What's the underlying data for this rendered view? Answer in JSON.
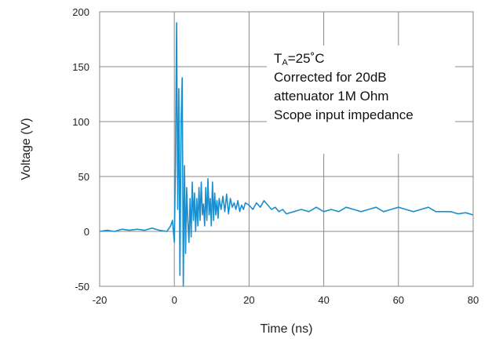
{
  "chart_data": {
    "type": "line",
    "title": "",
    "xlabel": "Time (ns)",
    "ylabel": "Voltage (V)",
    "xlim": [
      -20,
      80
    ],
    "ylim": [
      -50,
      200
    ],
    "xticks": [
      -20,
      0,
      20,
      40,
      60,
      80
    ],
    "yticks": [
      -50,
      0,
      50,
      100,
      150,
      200
    ],
    "grid": true,
    "line_color": "#1a8fcf",
    "annotation": {
      "line1_main": "T",
      "line1_sub": "A",
      "line1_rest": "=25˚C",
      "line2": "Corrected for 20dB",
      "line3": "attenuator 1M Ohm",
      "line4": "Scope input impedance"
    },
    "series": [
      {
        "x": [
          -20,
          -18,
          -16,
          -14,
          -12,
          -10,
          -8,
          -6,
          -4,
          -2,
          -1,
          -0.5,
          0,
          0.3,
          0.6,
          0.9,
          1.2,
          1.5,
          1.8,
          2.1,
          2.4,
          2.7,
          3.0,
          3.3,
          3.6,
          3.9,
          4.2,
          4.5,
          4.8,
          5.1,
          5.4,
          5.7,
          6.0,
          6.3,
          6.6,
          6.9,
          7.2,
          7.5,
          7.8,
          8.1,
          8.4,
          8.7,
          9.0,
          9.3,
          9.6,
          9.9,
          10.2,
          10.5,
          10.8,
          11.1,
          11.4,
          11.7,
          12.0,
          12.5,
          13.0,
          13.5,
          14.0,
          14.5,
          15.0,
          15.5,
          16.0,
          16.5,
          17.0,
          17.5,
          18.0,
          18.5,
          19.0,
          20.0,
          21.0,
          22.0,
          23.0,
          24.0,
          25.0,
          26.0,
          27.0,
          28.0,
          29.0,
          30.0,
          32.0,
          34.0,
          36.0,
          38.0,
          40.0,
          42.0,
          44.0,
          46.0,
          48.0,
          50.0,
          52.0,
          54.0,
          56.0,
          58.0,
          60.0,
          62.0,
          64.0,
          66.0,
          68.0,
          70.0,
          72.0,
          74.0,
          76.0,
          78.0,
          80.0
        ],
        "y": [
          0,
          1,
          0,
          2,
          1,
          2,
          1,
          3,
          1,
          0,
          5,
          10,
          -10,
          60,
          190,
          20,
          130,
          -40,
          100,
          140,
          -50,
          60,
          -20,
          40,
          10,
          -10,
          30,
          -5,
          45,
          10,
          35,
          0,
          30,
          5,
          40,
          10,
          45,
          15,
          25,
          5,
          40,
          10,
          48,
          15,
          30,
          5,
          45,
          10,
          35,
          15,
          28,
          12,
          30,
          20,
          32,
          18,
          34,
          16,
          30,
          22,
          26,
          20,
          28,
          18,
          24,
          20,
          26,
          24,
          20,
          26,
          22,
          28,
          24,
          20,
          22,
          18,
          20,
          16,
          18,
          20,
          18,
          22,
          18,
          20,
          18,
          22,
          20,
          18,
          20,
          22,
          18,
          20,
          22,
          20,
          18,
          20,
          22,
          18,
          18,
          18,
          16,
          17,
          15
        ]
      }
    ]
  }
}
